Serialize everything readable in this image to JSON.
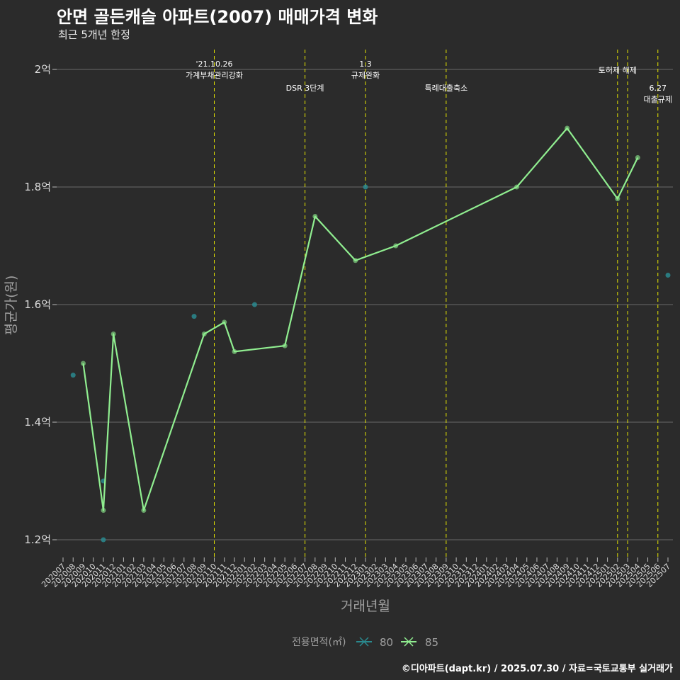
{
  "title": "안면 골든캐슬 아파트(2007) 매매가격 변화",
  "subtitle": "최근 5개년 한정",
  "caption": "©디아파트(dapt.kr) / 2025.07.30 / 자료=국토교통부 실거래가",
  "colors": {
    "background": "#2b2b2b",
    "grid": "#6a6a6a",
    "series80": "#2a8a8f",
    "series85": "#90ee90",
    "event_line": "#e6e600",
    "axis_label": "#a0a0a0"
  },
  "chart_data": {
    "type": "line",
    "title": "안면 골든캐슬 아파트(2007) 매매가격 변화",
    "xlabel": "거래년월",
    "ylabel": "평균가(원)",
    "x_ticks": [
      "202007",
      "202008",
      "202009",
      "202010",
      "202011",
      "202012",
      "202101",
      "202102",
      "202103",
      "202104",
      "202105",
      "202106",
      "202107",
      "202108",
      "202109",
      "202110",
      "202111",
      "202112",
      "202201",
      "202202",
      "202203",
      "202204",
      "202205",
      "202206",
      "202207",
      "202208",
      "202209",
      "202210",
      "202211",
      "202212",
      "202301",
      "202302",
      "202303",
      "202304",
      "202305",
      "202306",
      "202307",
      "202308",
      "202309",
      "202310",
      "202311",
      "202312",
      "202401",
      "202402",
      "202403",
      "202404",
      "202405",
      "202406",
      "202407",
      "202408",
      "202409",
      "202410",
      "202411",
      "202412",
      "202501",
      "202502",
      "202503",
      "202504",
      "202505",
      "202506",
      "202507"
    ],
    "y_ticks": [
      {
        "value": 1.2,
        "label": "1.2억"
      },
      {
        "value": 1.4,
        "label": "1.4억"
      },
      {
        "value": 1.6,
        "label": "1.6억"
      },
      {
        "value": 1.8,
        "label": "1.8억"
      },
      {
        "value": 2.0,
        "label": "2억"
      }
    ],
    "ylim": [
      1.16,
      2.04
    ],
    "legend": {
      "title": "전용면적(㎡)",
      "position": "bottom"
    },
    "series": [
      {
        "name": "80",
        "style": "points",
        "points": [
          {
            "x": "202008",
            "y": 1.48
          },
          {
            "x": "202011",
            "y": 1.3
          },
          {
            "x": "202011",
            "y": 1.2
          },
          {
            "x": "202108",
            "y": 1.58
          },
          {
            "x": "202202",
            "y": 1.6
          },
          {
            "x": "202301",
            "y": 1.8
          },
          {
            "x": "202507",
            "y": 1.65
          }
        ]
      },
      {
        "name": "85",
        "style": "line",
        "points": [
          {
            "x": "202009",
            "y": 1.5
          },
          {
            "x": "202011",
            "y": 1.25
          },
          {
            "x": "202012",
            "y": 1.55
          },
          {
            "x": "202103",
            "y": 1.25
          },
          {
            "x": "202109",
            "y": 1.55
          },
          {
            "x": "202111",
            "y": 1.57
          },
          {
            "x": "202112",
            "y": 1.52
          },
          {
            "x": "202205",
            "y": 1.53
          },
          {
            "x": "202208",
            "y": 1.75
          },
          {
            "x": "202212",
            "y": 1.675
          },
          {
            "x": "202304",
            "y": 1.7
          },
          {
            "x": "202404",
            "y": 1.8
          },
          {
            "x": "202409",
            "y": 1.9
          },
          {
            "x": "202502",
            "y": 1.78
          },
          {
            "x": "202504",
            "y": 1.85
          }
        ]
      }
    ],
    "events": [
      {
        "x": "202110",
        "lines": [
          "'21.10.26",
          "가계부채관리강화"
        ],
        "row": "high"
      },
      {
        "x": "202207",
        "lines": [
          "DSR 3단계"
        ],
        "row": "low"
      },
      {
        "x": "202301",
        "lines": [
          "1.3",
          "규제완화"
        ],
        "row": "high"
      },
      {
        "x": "202309",
        "lines": [
          "특례대출축소"
        ],
        "row": "low"
      },
      {
        "x": "202502",
        "lines": [
          "토허제 해제"
        ],
        "row": "mid"
      },
      {
        "x": "202503",
        "lines": [],
        "row": "mid"
      },
      {
        "x": "202506",
        "lines": [
          "6.27",
          "대출규제"
        ],
        "row": "low"
      }
    ]
  }
}
